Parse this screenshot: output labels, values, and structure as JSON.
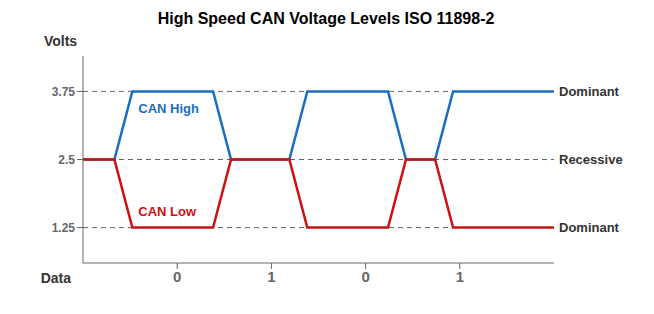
{
  "chart_data": {
    "type": "line",
    "title": "High Speed CAN Voltage Levels ISO 11898-2",
    "y_label": "Volts",
    "x": [
      0,
      0.7,
      1.1,
      2.9,
      3.3,
      4.6,
      5.0,
      6.8,
      7.2,
      7.85,
      8.25,
      9.8,
      10.5
    ],
    "series": [
      {
        "name": "CAN High",
        "color": "#1a6ec0",
        "values": [
          2.5,
          2.5,
          3.75,
          3.75,
          2.5,
          2.5,
          3.75,
          3.75,
          2.5,
          2.5,
          3.75,
          3.75,
          3.75
        ]
      },
      {
        "name": "CAN Low",
        "color": "#cc1111",
        "values": [
          2.5,
          2.5,
          1.25,
          1.25,
          2.5,
          2.5,
          1.25,
          1.25,
          2.5,
          2.5,
          1.25,
          1.25,
          1.25
        ]
      }
    ],
    "xlim": [
      0,
      10.5
    ],
    "ylim": [
      0.6,
      4.4
    ],
    "yticks": [
      1.25,
      2.5,
      3.75
    ],
    "annotations": [
      {
        "y": 3.75,
        "text": "Dominant"
      },
      {
        "y": 2.5,
        "text": "Recessive"
      },
      {
        "y": 1.25,
        "text": "Dominant"
      }
    ],
    "data_row": {
      "label": "Data",
      "values": [
        "0",
        "1",
        "0",
        "1"
      ]
    }
  }
}
